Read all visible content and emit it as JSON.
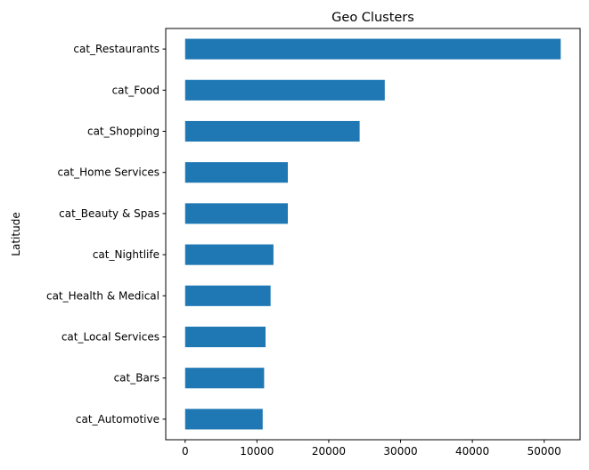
{
  "chart_data": {
    "type": "bar",
    "orientation": "horizontal",
    "title": "Geo Clusters",
    "xlabel": "",
    "ylabel": "Latitude",
    "categories": [
      "cat_Restaurants",
      "cat_Food",
      "cat_Shopping",
      "cat_Home Services",
      "cat_Beauty & Spas",
      "cat_Nightlife",
      "cat_Health & Medical",
      "cat_Local Services",
      "cat_Bars",
      "cat_Automotive"
    ],
    "values": [
      52300,
      27800,
      24300,
      14300,
      14300,
      12300,
      11900,
      11200,
      11000,
      10800
    ],
    "xlim": [
      -2700,
      55000
    ],
    "xticks": [
      0,
      10000,
      20000,
      30000,
      40000,
      50000
    ],
    "xtick_labels": [
      "0",
      "10000",
      "20000",
      "30000",
      "40000",
      "50000"
    ],
    "grid": false,
    "colors": {
      "bar": "#1f77b4",
      "axes": "#000000"
    }
  }
}
